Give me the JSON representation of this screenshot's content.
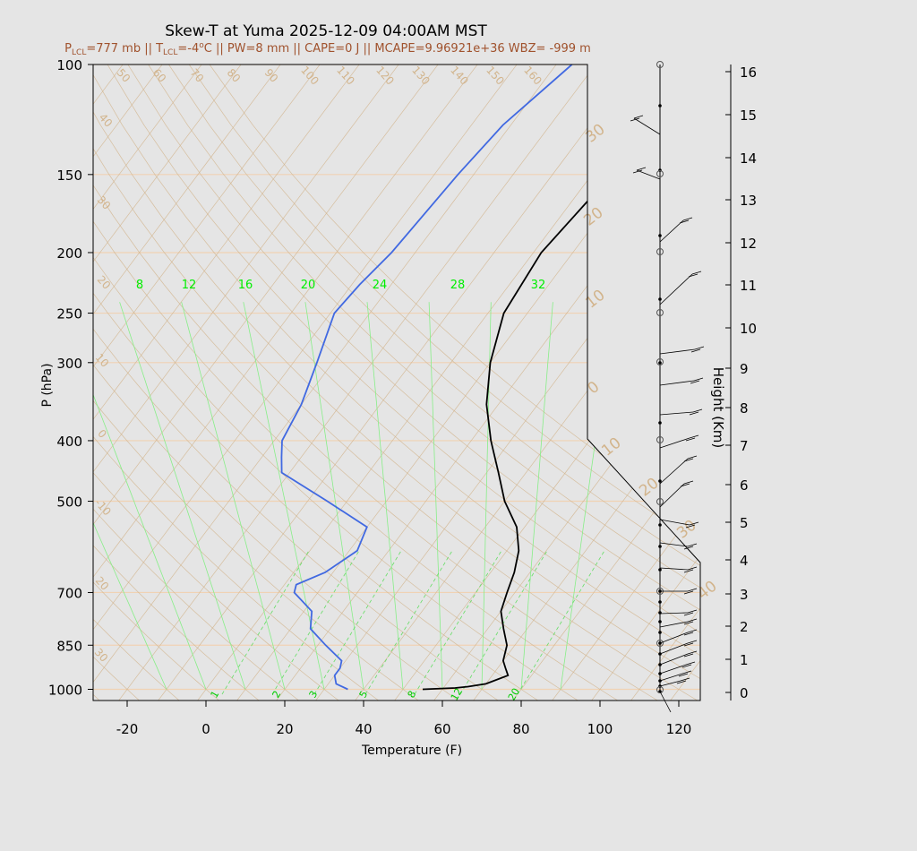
{
  "header": {
    "title": "Skew-T at Yuma 2025-12-09 04:00AM MST",
    "subtitle_parts": [
      "P",
      "LCL",
      "=777 mb || T",
      "LCL",
      "=-4",
      "o",
      "C || PW=8 mm || CAPE=0 J || MCAPE=9.96921e+36 WBZ= -999 m"
    ]
  },
  "colors": {
    "background": "#e5e5e5",
    "plot_background": "#e5e5e5",
    "isobar": "#f0d2b4",
    "dry_adiabat": "#d2b48c",
    "moist_adiabat": "#88ee88",
    "mixing_ratio": "#66dd66",
    "temperature": "#000000",
    "dewpoint": "#4169e1",
    "subtitle": "#a0522d"
  },
  "chart_data": {
    "type": "skew-t",
    "xlabel": "Temperature (F)",
    "ylabel": "P (hPa)",
    "y2label": "Height (Km)",
    "x_ticks": [
      -20,
      0,
      20,
      40,
      60,
      80,
      100,
      120
    ],
    "p_ticks": [
      100,
      150,
      200,
      250,
      300,
      400,
      500,
      700,
      850,
      1000
    ],
    "height_ticks": [
      0,
      1,
      2,
      3,
      4,
      5,
      6,
      7,
      8,
      9,
      10,
      11,
      12,
      13,
      14,
      15,
      16
    ],
    "isotherm_labels": [
      "50",
      "60",
      "70",
      "80",
      "90",
      "100",
      "110",
      "120",
      "130",
      "140",
      "150",
      "160",
      "40",
      "30",
      "20",
      "10",
      "0",
      "-10",
      "20",
      "30"
    ],
    "adiabat_labels": [
      "30",
      "20",
      "10",
      "0",
      "10",
      "20",
      "30",
      "40"
    ],
    "mixing_ratio_top_labels": [
      "8",
      "12",
      "16",
      "20",
      "24",
      "28",
      "32"
    ],
    "mixing_ratio_bottom_labels": [
      "1",
      "2",
      "3",
      "5",
      "8",
      "12",
      "20"
    ],
    "temperature_F": {
      "p": [
        1000,
        995,
        990,
        980,
        950,
        925,
        900,
        850,
        800,
        750,
        700,
        650,
        600,
        550,
        500,
        450,
        400,
        350,
        300,
        250,
        200,
        150,
        125,
        100
      ],
      "t": [
        55,
        63,
        66,
        70,
        74,
        72,
        70,
        68,
        64,
        60,
        58,
        56,
        53,
        48,
        40,
        33,
        25,
        17,
        10,
        4,
        2,
        5,
        12,
        20
      ]
    },
    "dewpoint_F": {
      "p": [
        1000,
        980,
        950,
        925,
        900,
        850,
        800,
        750,
        700,
        680,
        650,
        600,
        550,
        500,
        450,
        425,
        400,
        350,
        300,
        250,
        225,
        200,
        150,
        125,
        100
      ],
      "t": [
        36,
        32,
        30,
        30,
        29,
        22,
        15,
        12,
        4,
        3,
        8,
        12,
        10,
        -5,
        -22,
        -25,
        -28,
        -30,
        -34,
        -39,
        -38,
        -36,
        -34,
        -32,
        -26
      ]
    }
  }
}
